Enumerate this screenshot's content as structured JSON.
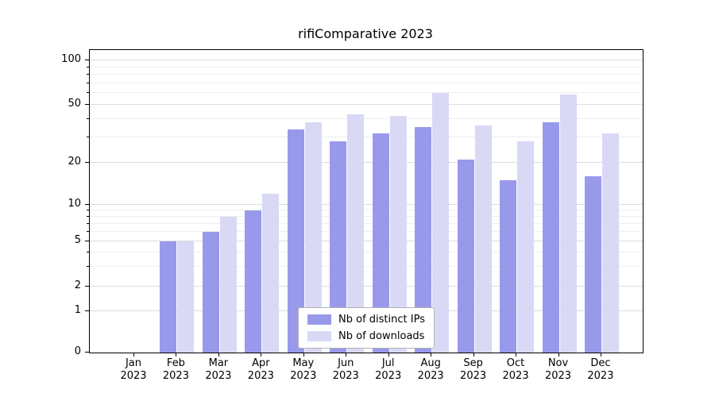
{
  "chart_data": {
    "type": "bar",
    "title": "rifiComparative 2023",
    "scale": "symlog",
    "grid": true,
    "ylim": [
      0,
      122
    ],
    "yticks": [
      0,
      1,
      2,
      5,
      10,
      20,
      50,
      100
    ],
    "minor_yticks": [
      3,
      4,
      6,
      7,
      8,
      9,
      30,
      40,
      60,
      70,
      80,
      90
    ],
    "categories": [
      "Jan 2023",
      "Feb 2023",
      "Mar 2023",
      "Apr 2023",
      "May 2023",
      "Jun 2023",
      "Jul 2023",
      "Aug 2023",
      "Sep 2023",
      "Oct 2023",
      "Nov 2023",
      "Dec 2023"
    ],
    "series": [
      {
        "name": "Nb of distinct IPs",
        "color": "#9999ec",
        "values": [
          0,
          5,
          6,
          9,
          34,
          28,
          32,
          35,
          21,
          15,
          38,
          16
        ]
      },
      {
        "name": "Nb of downloads",
        "color": "#d9d9f6",
        "values": [
          0,
          5,
          8,
          12,
          38,
          43,
          42,
          60,
          36,
          28,
          59,
          32
        ]
      }
    ],
    "legend_position": "lower center"
  }
}
